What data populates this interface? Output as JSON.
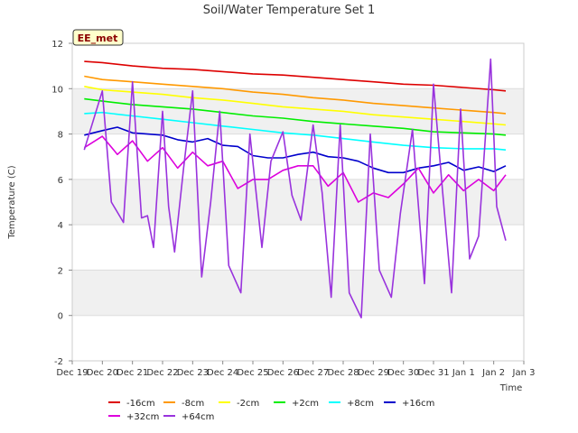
{
  "chart_data": {
    "type": "line",
    "title": "Soil/Water Temperature Set 1",
    "xlabel": "Time",
    "ylabel": "Temperature (C)",
    "badge": "EE_met",
    "ylim": [
      -2,
      12
    ],
    "yticks": [
      "-2",
      "0",
      "2",
      "4",
      "6",
      "8",
      "10",
      "12"
    ],
    "xlim": [
      19,
      34
    ],
    "xticks": [
      "Dec 19",
      "Dec 20",
      "Dec 21",
      "Dec 22",
      "Dec 23",
      "Dec 24",
      "Dec 25",
      "Dec 26",
      "Dec 27",
      "Dec 28",
      "Dec 29",
      "Dec 30",
      "Dec 31",
      "Jan 1",
      "Jan 2",
      "Jan 3"
    ],
    "x_note": "x values are days of December (32 = Jan 1, 33 = Jan 2, 34 = Jan 3)",
    "grid": "horizontal bands",
    "legend_position": "bottom",
    "colors": {
      "-16cm": "#dd0000",
      "-8cm": "#ff9900",
      "-2cm": "#ffff00",
      "+2cm": "#00ee00",
      "+8cm": "#00ffff",
      "+16cm": "#0000cc",
      "+32cm": "#dd00dd",
      "+64cm": "#9933dd"
    },
    "series": [
      {
        "name": "-16cm",
        "x": [
          19.4,
          20,
          21,
          22,
          23,
          24,
          25,
          26,
          27,
          28,
          29,
          30,
          31,
          32,
          33,
          33.4
        ],
        "values": [
          11.2,
          11.15,
          11.0,
          10.9,
          10.85,
          10.75,
          10.65,
          10.6,
          10.5,
          10.4,
          10.3,
          10.2,
          10.15,
          10.05,
          9.95,
          9.9
        ]
      },
      {
        "name": "-8cm",
        "x": [
          19.4,
          20,
          21,
          22,
          23,
          24,
          25,
          26,
          27,
          28,
          29,
          30,
          31,
          32,
          33,
          33.4
        ],
        "values": [
          10.55,
          10.4,
          10.3,
          10.2,
          10.1,
          10.0,
          9.85,
          9.75,
          9.6,
          9.5,
          9.35,
          9.25,
          9.15,
          9.05,
          8.95,
          8.9
        ]
      },
      {
        "name": "-2cm",
        "x": [
          19.4,
          20,
          21,
          22,
          23,
          24,
          25,
          26,
          27,
          28,
          29,
          30,
          31,
          32,
          33,
          33.4
        ],
        "values": [
          10.1,
          9.95,
          9.85,
          9.75,
          9.6,
          9.5,
          9.35,
          9.2,
          9.1,
          9.0,
          8.85,
          8.75,
          8.65,
          8.55,
          8.45,
          8.4
        ]
      },
      {
        "name": "+2cm",
        "x": [
          19.4,
          20,
          21,
          22,
          23,
          24,
          25,
          26,
          27,
          28,
          29,
          30,
          31,
          32,
          33,
          33.4
        ],
        "values": [
          9.55,
          9.45,
          9.3,
          9.2,
          9.1,
          8.95,
          8.8,
          8.7,
          8.55,
          8.45,
          8.35,
          8.25,
          8.1,
          8.05,
          8.0,
          7.95
        ]
      },
      {
        "name": "+8cm",
        "x": [
          19.4,
          20,
          21,
          22,
          23,
          24,
          25,
          26,
          27,
          28,
          29,
          30,
          31,
          32,
          33,
          33.4
        ],
        "values": [
          8.9,
          8.95,
          8.8,
          8.65,
          8.5,
          8.35,
          8.2,
          8.05,
          7.95,
          7.8,
          7.65,
          7.5,
          7.4,
          7.35,
          7.35,
          7.3
        ]
      },
      {
        "name": "+16cm",
        "x": [
          19.4,
          20,
          20.5,
          21,
          21.5,
          22,
          22.5,
          23,
          23.5,
          24,
          24.5,
          25,
          25.5,
          26,
          26.5,
          27,
          27.5,
          28,
          28.5,
          29,
          29.5,
          30,
          30.5,
          31,
          31.5,
          32,
          32.5,
          33,
          33.4
        ],
        "values": [
          7.95,
          8.15,
          8.3,
          8.05,
          8.0,
          7.95,
          7.75,
          7.65,
          7.8,
          7.5,
          7.45,
          7.05,
          6.95,
          6.95,
          7.1,
          7.2,
          7.0,
          6.95,
          6.8,
          6.5,
          6.3,
          6.3,
          6.5,
          6.6,
          6.75,
          6.4,
          6.55,
          6.35,
          6.6
        ]
      },
      {
        "name": "+32cm",
        "x": [
          19.4,
          20,
          20.5,
          21,
          21.5,
          22,
          22.5,
          23,
          23.5,
          24,
          24.5,
          25,
          25.5,
          26,
          26.5,
          27,
          27.5,
          28,
          28.5,
          29,
          29.5,
          30,
          30.5,
          31,
          31.5,
          32,
          32.5,
          33,
          33.4
        ],
        "values": [
          7.4,
          7.9,
          7.1,
          7.7,
          6.8,
          7.4,
          6.5,
          7.2,
          6.6,
          6.8,
          5.6,
          6.0,
          6.0,
          6.4,
          6.6,
          6.6,
          5.7,
          6.3,
          5.0,
          5.4,
          5.2,
          5.8,
          6.5,
          5.4,
          6.2,
          5.5,
          6.0,
          5.5,
          6.2
        ]
      },
      {
        "name": "+64cm",
        "x": [
          19.4,
          20,
          20.3,
          20.7,
          21,
          21.3,
          21.5,
          21.7,
          22,
          22.2,
          22.4,
          22.7,
          23,
          23.3,
          23.6,
          23.9,
          24.2,
          24.6,
          24.9,
          25.3,
          25.6,
          26,
          26.3,
          26.6,
          27,
          27.3,
          27.6,
          27.9,
          28.2,
          28.6,
          28.9,
          29.2,
          29.6,
          29.9,
          30.3,
          30.7,
          31,
          31.3,
          31.6,
          31.9,
          32.2,
          32.5,
          32.9,
          33.1,
          33.4
        ],
        "values": [
          7.3,
          9.9,
          5.0,
          4.1,
          10.3,
          4.3,
          4.4,
          3.0,
          9.0,
          4.8,
          2.8,
          6.5,
          9.9,
          1.7,
          5.0,
          9.0,
          2.2,
          1.0,
          8.0,
          3.0,
          6.8,
          8.1,
          5.3,
          4.2,
          8.4,
          5.4,
          0.8,
          8.4,
          1.0,
          -0.1,
          8.0,
          2.0,
          0.8,
          4.5,
          8.2,
          1.4,
          10.2,
          5.5,
          1.0,
          9.1,
          2.5,
          3.5,
          11.3,
          4.8,
          3.3
        ]
      }
    ]
  }
}
